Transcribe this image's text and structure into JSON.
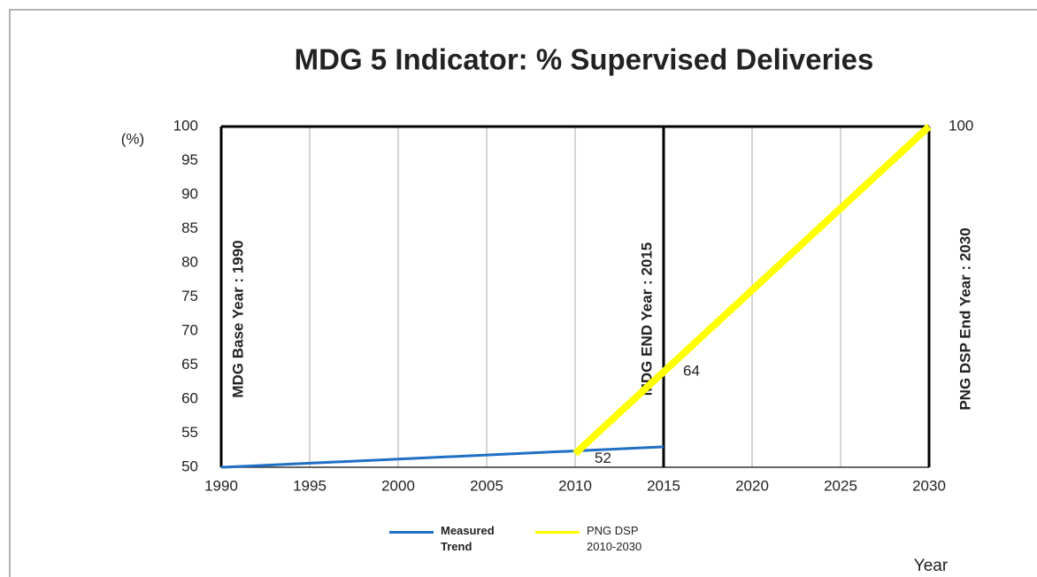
{
  "chart_data": {
    "type": "line",
    "title": "MDG 5   Indicator: % Supervised Deliveries",
    "ylabel": "(%)",
    "xlabel": "Year",
    "xlim": [
      1990,
      2030
    ],
    "xticks": [
      1990,
      1995,
      2000,
      2005,
      2010,
      2015,
      2020,
      2025,
      2030
    ],
    "ylim": [
      50,
      100
    ],
    "yticks": [
      50,
      55,
      60,
      65,
      70,
      75,
      80,
      85,
      90,
      95,
      100
    ],
    "grid": true,
    "series": [
      {
        "name": "Measured Trend",
        "color": "#1f6fc5",
        "x": [
          1990,
          2015
        ],
        "values": [
          50,
          53
        ]
      },
      {
        "name": "PNG DSP 2010-2030",
        "color": "#ffff00",
        "x": [
          2010,
          2015,
          2030
        ],
        "values": [
          52,
          64,
          100
        ]
      }
    ],
    "annotations": [
      {
        "text": "MDG Base Year : 1990",
        "x": 1990
      },
      {
        "text": "MDG END Year : 2015",
        "x": 2015
      },
      {
        "text": "PNG DSP  End Year : 2030",
        "x": 2030
      }
    ]
  }
}
